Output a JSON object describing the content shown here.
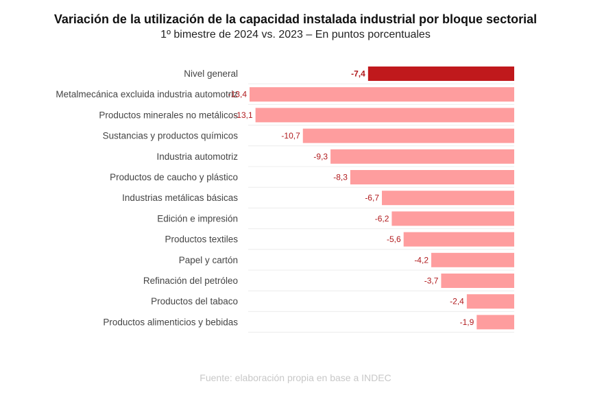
{
  "chart_data": {
    "type": "bar",
    "orientation": "horizontal",
    "title": "Variación de la utilización de la capacidad instalada industrial por bloque sectorial",
    "subtitle": "1º bimestre de 2024 vs. 2023 – En puntos porcentuales",
    "source": "Fuente: elaboración propia en base a INDEC",
    "categories": [
      "Nivel general",
      "Metalmecánica excluida industria automotriz",
      "Productos minerales no metálicos",
      "Sustancias y productos químicos",
      "Industria automotriz",
      "Productos de caucho y plástico",
      "Industrias metálicas básicas",
      "Edición e impresión",
      "Productos textiles",
      "Papel y cartón",
      "Refinación del petróleo",
      "Productos del tabaco",
      "Productos alimenticios y bebidas"
    ],
    "values": [
      -7.4,
      -13.4,
      -13.1,
      -10.7,
      -9.3,
      -8.3,
      -6.7,
      -6.2,
      -5.6,
      -4.2,
      -3.7,
      -2.4,
      -1.9
    ],
    "value_labels": [
      "-7,4",
      "-13,4",
      "-13,1",
      "-10,7",
      "-9,3",
      "-8,3",
      "-6,7",
      "-6,2",
      "-5,6",
      "-4,2",
      "-3,7",
      "-2,4",
      "-1,9"
    ],
    "highlight_index": 0,
    "xlim": [
      -13.4,
      0
    ],
    "grid": "row separators",
    "colors": {
      "highlight": "#c0191c",
      "bar": "#fe9d9e",
      "label": "#b0191c"
    }
  }
}
